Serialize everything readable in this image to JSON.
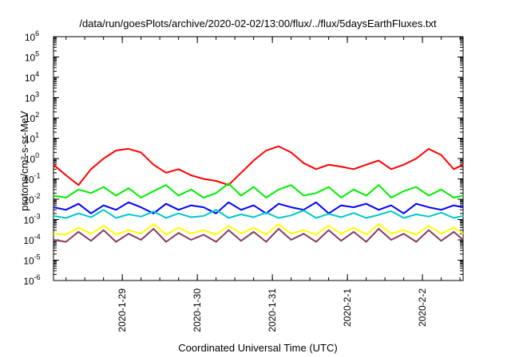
{
  "chart_data": {
    "type": "line",
    "title": "/data/run/goesPlots/archive/2020-02-02/13:00/flux/../flux/5daysEarthFluxes.txt",
    "xlabel": "Coordinated Universal Time (UTC)",
    "ylabel": "protons/cm²-s-sr-MeV",
    "yscale": "log",
    "ylim": [
      1e-06,
      1000000.0
    ],
    "xlim": [
      "2020-01-28 02:00",
      "2020-02-02 13:00"
    ],
    "grid": false,
    "legend": "none",
    "x_tick_labels": [
      "2020-1-29",
      "2020-1-30",
      "2020-1-31",
      "2020-2-1",
      "2020-2-2"
    ],
    "y_tick_labels": [
      {
        "base": "10",
        "exp": "-6"
      },
      {
        "base": "10",
        "exp": "-5"
      },
      {
        "base": "10",
        "exp": "-4"
      },
      {
        "base": "10",
        "exp": "-3"
      },
      {
        "base": "10",
        "exp": "-2"
      },
      {
        "base": "10",
        "exp": "-1"
      },
      {
        "base": "10",
        "exp": "0"
      },
      {
        "base": "10",
        "exp": "1"
      },
      {
        "base": "10",
        "exp": "2"
      },
      {
        "base": "10",
        "exp": "3"
      },
      {
        "base": "10",
        "exp": "4"
      },
      {
        "base": "10",
        "exp": "5"
      },
      {
        "base": "10",
        "exp": "6"
      }
    ],
    "x": [
      "2020-01-28 02:00",
      "2020-01-28 06:00",
      "2020-01-28 10:00",
      "2020-01-28 14:00",
      "2020-01-28 18:00",
      "2020-01-28 22:00",
      "2020-01-29 02:00",
      "2020-01-29 06:00",
      "2020-01-29 10:00",
      "2020-01-29 14:00",
      "2020-01-29 18:00",
      "2020-01-29 22:00",
      "2020-01-30 02:00",
      "2020-01-30 06:00",
      "2020-01-30 10:00",
      "2020-01-30 14:00",
      "2020-01-30 18:00",
      "2020-01-30 22:00",
      "2020-01-31 02:00",
      "2020-01-31 06:00",
      "2020-01-31 10:00",
      "2020-01-31 14:00",
      "2020-01-31 18:00",
      "2020-01-31 22:00",
      "2020-02-01 02:00",
      "2020-02-01 06:00",
      "2020-02-01 10:00",
      "2020-02-01 14:00",
      "2020-02-01 18:00",
      "2020-02-01 22:00",
      "2020-02-02 02:00",
      "2020-02-02 06:00",
      "2020-02-02 10:00",
      "2020-02-02 13:00"
    ],
    "series": [
      {
        "color": "#ff0000",
        "values": [
          0.5,
          0.15,
          0.05,
          0.3,
          1.0,
          2.5,
          3.0,
          2.0,
          0.5,
          0.2,
          0.3,
          0.15,
          0.1,
          0.08,
          0.05,
          0.2,
          0.8,
          2.5,
          4.0,
          2.0,
          0.6,
          0.3,
          0.5,
          0.4,
          0.3,
          0.5,
          0.8,
          0.3,
          0.5,
          1.0,
          3.0,
          1.5,
          0.3,
          0.5
        ]
      },
      {
        "color": "#00ee00",
        "values": [
          0.015,
          0.012,
          0.03,
          0.02,
          0.04,
          0.015,
          0.035,
          0.012,
          0.025,
          0.05,
          0.015,
          0.03,
          0.012,
          0.02,
          0.06,
          0.015,
          0.04,
          0.012,
          0.03,
          0.05,
          0.015,
          0.02,
          0.04,
          0.012,
          0.03,
          0.015,
          0.05,
          0.012,
          0.025,
          0.04,
          0.015,
          0.03,
          0.012,
          0.015
        ]
      },
      {
        "color": "#0000ff",
        "values": [
          0.004,
          0.003,
          0.006,
          0.002,
          0.005,
          0.003,
          0.007,
          0.004,
          0.002,
          0.006,
          0.003,
          0.005,
          0.004,
          0.002,
          0.007,
          0.003,
          0.005,
          0.002,
          0.006,
          0.004,
          0.003,
          0.007,
          0.002,
          0.005,
          0.004,
          0.006,
          0.003,
          0.005,
          0.002,
          0.006,
          0.004,
          0.003,
          0.005,
          0.004
        ]
      },
      {
        "color": "#00c8c8",
        "values": [
          0.0015,
          0.0012,
          0.002,
          0.0013,
          0.003,
          0.0012,
          0.0018,
          0.0014,
          0.0025,
          0.0012,
          0.002,
          0.0013,
          0.0015,
          0.003,
          0.0012,
          0.0018,
          0.0013,
          0.0022,
          0.0012,
          0.0016,
          0.0028,
          0.0012,
          0.0019,
          0.0013,
          0.0021,
          0.0012,
          0.0017,
          0.0026,
          0.0012,
          0.0018,
          0.0014,
          0.0022,
          0.0012,
          0.0015
        ]
      },
      {
        "color": "#ffff00",
        "values": [
          0.0002,
          0.00018,
          0.0004,
          0.0002,
          0.0005,
          0.00018,
          0.0003,
          0.0002,
          0.0006,
          0.00018,
          0.0004,
          0.0002,
          0.0003,
          0.00018,
          0.0005,
          0.0002,
          0.0004,
          0.00018,
          0.0006,
          0.0002,
          0.0003,
          0.00018,
          0.0005,
          0.0002,
          0.0004,
          0.00018,
          0.0006,
          0.0002,
          0.0003,
          0.00018,
          0.0005,
          0.0002,
          0.0004,
          0.0002
        ]
      },
      {
        "color": "#8b3a62",
        "values": [
          0.0001,
          8e-05,
          0.00025,
          9e-05,
          0.0003,
          8e-05,
          0.0002,
          0.0001,
          0.00035,
          8e-05,
          0.00022,
          0.0001,
          0.00018,
          8e-05,
          0.0003,
          9e-05,
          0.00025,
          8e-05,
          0.00035,
          0.0001,
          0.0002,
          8e-05,
          0.0003,
          9e-05,
          0.00025,
          8e-05,
          0.00035,
          0.0001,
          0.0002,
          8e-05,
          0.0003,
          9e-05,
          0.00025,
          0.0001
        ]
      }
    ]
  }
}
